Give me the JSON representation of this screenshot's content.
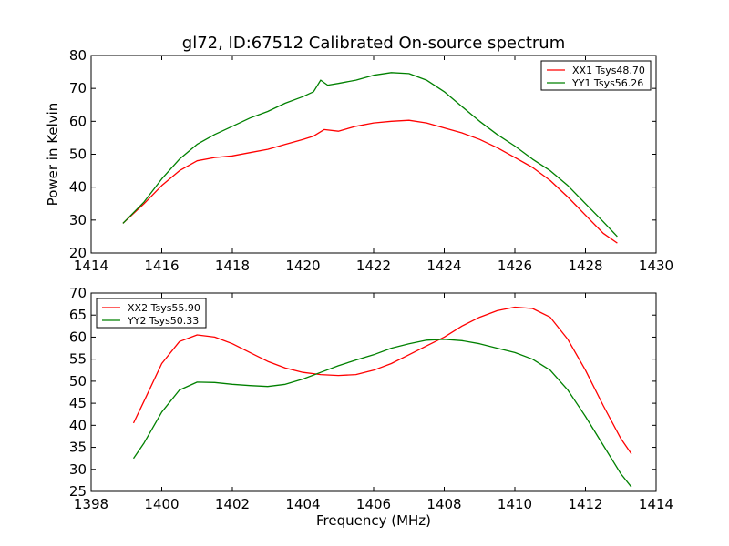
{
  "title": "gl72, ID:67512 Calibrated On-source spectrum",
  "chart_data": [
    {
      "type": "line",
      "xlabel": "",
      "ylabel": "Power in Kelvin",
      "xlim": [
        1414,
        1430
      ],
      "ylim": [
        20,
        80
      ],
      "xticks": [
        "1414",
        "1416",
        "1418",
        "1420",
        "1422",
        "1424",
        "1426",
        "1428",
        "1430"
      ],
      "yticks": [
        "20",
        "30",
        "40",
        "50",
        "60",
        "70",
        "80"
      ],
      "grid": false,
      "legend_position": "top-right",
      "series": [
        {
          "name": "XX1 Tsys48.70",
          "color": "#ff0000",
          "x": [
            1414.9,
            1415.5,
            1416.0,
            1416.5,
            1417.0,
            1417.5,
            1418.0,
            1418.5,
            1419.0,
            1419.5,
            1420.0,
            1420.3,
            1420.6,
            1421.0,
            1421.5,
            1422.0,
            1422.5,
            1423.0,
            1423.5,
            1424.0,
            1424.5,
            1425.0,
            1425.5,
            1426.0,
            1426.5,
            1427.0,
            1427.5,
            1428.0,
            1428.5,
            1428.9
          ],
          "y": [
            29.0,
            35.0,
            40.5,
            45.0,
            48.0,
            49.0,
            49.5,
            50.5,
            51.5,
            53.0,
            54.5,
            55.5,
            57.5,
            57.0,
            58.5,
            59.5,
            60.0,
            60.3,
            59.5,
            58.0,
            56.5,
            54.5,
            52.0,
            49.0,
            46.0,
            42.0,
            37.0,
            31.5,
            26.0,
            23.0
          ]
        },
        {
          "name": "YY1 Tsys56.26",
          "color": "#008000",
          "x": [
            1414.9,
            1415.5,
            1416.0,
            1416.5,
            1417.0,
            1417.5,
            1418.0,
            1418.5,
            1419.0,
            1419.5,
            1420.0,
            1420.3,
            1420.5,
            1420.7,
            1421.0,
            1421.5,
            1422.0,
            1422.5,
            1423.0,
            1423.5,
            1424.0,
            1424.5,
            1425.0,
            1425.5,
            1426.0,
            1426.5,
            1427.0,
            1427.5,
            1428.0,
            1428.5,
            1428.9
          ],
          "y": [
            29.0,
            35.5,
            42.5,
            48.5,
            53.0,
            56.0,
            58.5,
            61.0,
            63.0,
            65.5,
            67.5,
            69.0,
            72.5,
            71.0,
            71.5,
            72.5,
            74.0,
            74.8,
            74.5,
            72.5,
            69.0,
            64.5,
            60.0,
            56.0,
            52.5,
            48.5,
            45.0,
            40.5,
            35.0,
            29.5,
            25.0
          ]
        }
      ]
    },
    {
      "type": "line",
      "xlabel": "Frequency (MHz)",
      "ylabel": "",
      "xlim": [
        1398,
        1414
      ],
      "ylim": [
        25,
        70
      ],
      "xticks": [
        "1398",
        "1400",
        "1402",
        "1404",
        "1406",
        "1408",
        "1410",
        "1412",
        "1414"
      ],
      "yticks": [
        "25",
        "30",
        "35",
        "40",
        "45",
        "50",
        "55",
        "60",
        "65",
        "70"
      ],
      "grid": false,
      "legend_position": "top-left",
      "series": [
        {
          "name": "XX2 Tsys55.90",
          "color": "#ff0000",
          "x": [
            1399.2,
            1399.5,
            1400.0,
            1400.5,
            1401.0,
            1401.5,
            1402.0,
            1402.5,
            1403.0,
            1403.5,
            1404.0,
            1404.5,
            1405.0,
            1405.5,
            1406.0,
            1406.5,
            1407.0,
            1407.5,
            1408.0,
            1408.5,
            1409.0,
            1409.5,
            1410.0,
            1410.5,
            1411.0,
            1411.5,
            1412.0,
            1412.5,
            1413.0,
            1413.3
          ],
          "y": [
            40.5,
            45.5,
            54.0,
            59.0,
            60.5,
            60.0,
            58.5,
            56.5,
            54.5,
            53.0,
            52.0,
            51.5,
            51.3,
            51.5,
            52.5,
            54.0,
            56.0,
            58.0,
            60.0,
            62.5,
            64.5,
            66.0,
            66.8,
            66.5,
            64.5,
            59.5,
            52.5,
            44.5,
            37.0,
            33.5
          ]
        },
        {
          "name": "YY2 Tsys50.33",
          "color": "#008000",
          "x": [
            1399.2,
            1399.5,
            1400.0,
            1400.5,
            1401.0,
            1401.5,
            1402.0,
            1402.5,
            1403.0,
            1403.5,
            1404.0,
            1404.5,
            1405.0,
            1405.5,
            1406.0,
            1406.5,
            1407.0,
            1407.5,
            1408.0,
            1408.5,
            1409.0,
            1409.5,
            1410.0,
            1410.5,
            1411.0,
            1411.5,
            1412.0,
            1412.5,
            1413.0,
            1413.3
          ],
          "y": [
            32.5,
            36.0,
            43.0,
            48.0,
            49.8,
            49.7,
            49.3,
            49.0,
            48.8,
            49.3,
            50.5,
            52.0,
            53.5,
            54.8,
            56.0,
            57.5,
            58.5,
            59.3,
            59.5,
            59.2,
            58.5,
            57.5,
            56.5,
            55.0,
            52.5,
            48.0,
            42.0,
            35.5,
            29.0,
            26.0
          ]
        }
      ]
    }
  ]
}
